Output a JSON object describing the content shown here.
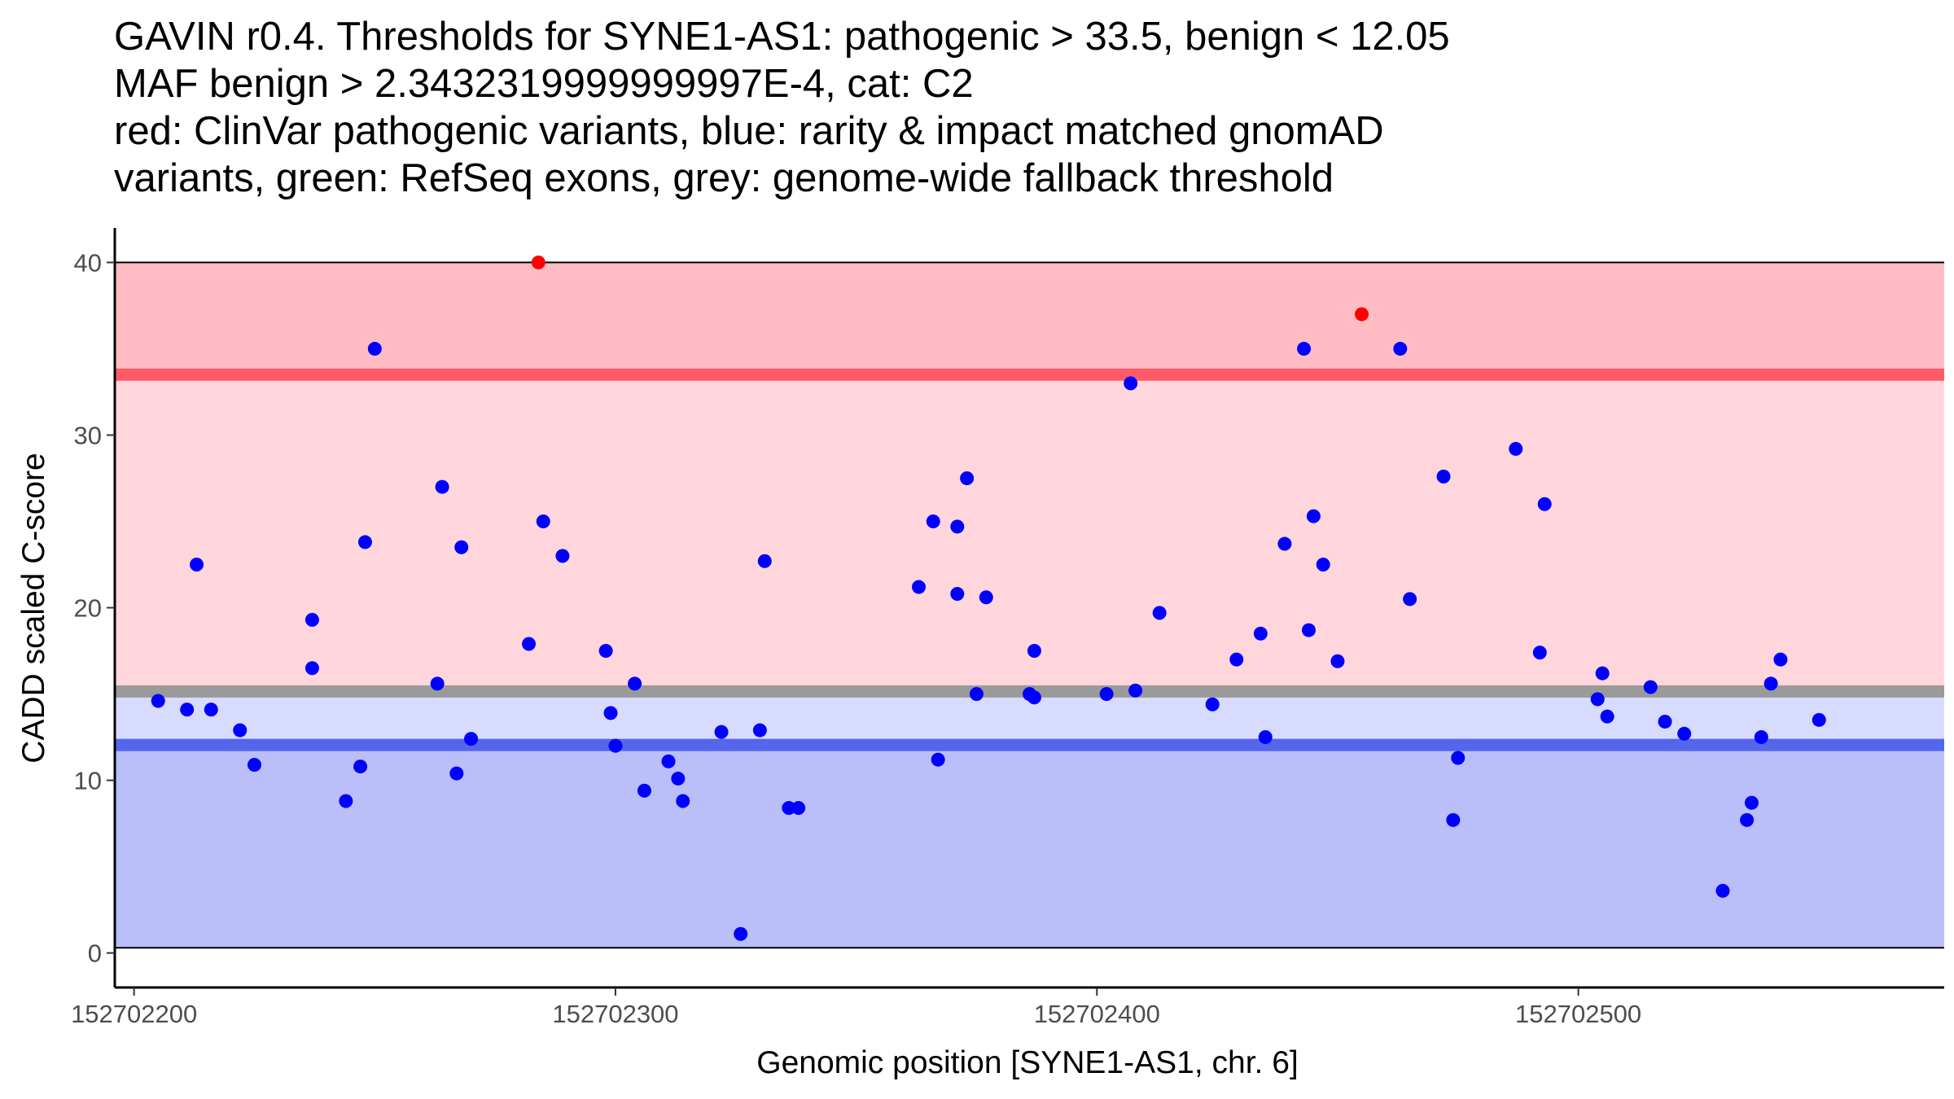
{
  "chart_data": {
    "type": "scatter",
    "title_lines": [
      "GAVIN r0.4. Thresholds for SYNE1-AS1: pathogenic > 33.5, benign < 12.05",
      "MAF benign > 2.3432319999999997E-4, cat: C2",
      "red: ClinVar pathogenic variants, blue: rarity & impact matched gnomAD",
      "variants, green: RefSeq exons, grey: genome-wide fallback threshold"
    ],
    "xlabel": "Genomic position [SYNE1-AS1, chr. 6]",
    "ylabel": "CADD scaled C-score",
    "xlim": [
      152702196,
      152702576
    ],
    "ylim": [
      -2,
      42
    ],
    "x_ticks": [
      152702200,
      152702300,
      152702400,
      152702500
    ],
    "y_ticks": [
      0,
      10,
      20,
      30,
      40
    ],
    "colors": {
      "pathogenic_band": "#ffbcc2",
      "middle_band": "#ffd6dc",
      "benign_upper_band": "#d7dbff",
      "benign_band": "#babffa",
      "pathogenic_line": "#ff5a68",
      "grey_line": "#9a9a9a",
      "benign_line": "#5366ec",
      "pathogenic_point": "#ff0000",
      "benign_point": "#0000ff"
    },
    "bands": {
      "pathogenic_region": [
        33.5,
        40
      ],
      "middle_region": [
        15.15,
        33.5
      ],
      "benign_upper_region": [
        12.05,
        15.15
      ],
      "benign_region": [
        0.3,
        12.05
      ]
    },
    "thresholds": {
      "pathogenic": 33.5,
      "genome_wide_fallback": 15.15,
      "benign": 12.05
    },
    "series": [
      {
        "name": "ClinVar pathogenic variants",
        "color": "#ff0000",
        "points": [
          [
            152702284,
            40.0
          ],
          [
            152702455,
            37.0
          ]
        ]
      },
      {
        "name": "rarity & impact matched gnomAD variants",
        "color": "#0000ff",
        "points": [
          [
            152702205,
            14.6
          ],
          [
            152702211,
            14.1
          ],
          [
            152702213,
            22.5
          ],
          [
            152702216,
            14.1
          ],
          [
            152702222,
            12.9
          ],
          [
            152702225,
            10.9
          ],
          [
            152702237,
            19.3
          ],
          [
            152702237,
            16.5
          ],
          [
            152702244,
            8.8
          ],
          [
            152702247,
            10.8
          ],
          [
            152702248,
            23.8
          ],
          [
            152702250,
            35.0
          ],
          [
            152702263,
            15.6
          ],
          [
            152702264,
            27.0
          ],
          [
            152702267,
            10.4
          ],
          [
            152702268,
            23.5
          ],
          [
            152702270,
            12.4
          ],
          [
            152702282,
            17.9
          ],
          [
            152702285,
            25.0
          ],
          [
            152702289,
            23.0
          ],
          [
            152702298,
            17.5
          ],
          [
            152702299,
            13.9
          ],
          [
            152702300,
            12.0
          ],
          [
            152702304,
            15.6
          ],
          [
            152702306,
            9.4
          ],
          [
            152702311,
            11.1
          ],
          [
            152702313,
            10.1
          ],
          [
            152702314,
            8.8
          ],
          [
            152702322,
            12.8
          ],
          [
            152702326,
            1.1
          ],
          [
            152702330,
            12.9
          ],
          [
            152702331,
            22.7
          ],
          [
            152702336,
            8.4
          ],
          [
            152702338,
            8.4
          ],
          [
            152702363,
            21.2
          ],
          [
            152702366,
            25.0
          ],
          [
            152702367,
            11.2
          ],
          [
            152702371,
            24.7
          ],
          [
            152702371,
            20.8
          ],
          [
            152702373,
            27.5
          ],
          [
            152702375,
            15.0
          ],
          [
            152702377,
            20.6
          ],
          [
            152702386,
            15.0
          ],
          [
            152702387,
            17.5
          ],
          [
            152702387,
            14.8
          ],
          [
            152702402,
            15.0
          ],
          [
            152702407,
            33.0
          ],
          [
            152702408,
            15.2
          ],
          [
            152702413,
            19.7
          ],
          [
            152702424,
            14.4
          ],
          [
            152702429,
            17.0
          ],
          [
            152702434,
            18.5
          ],
          [
            152702435,
            12.5
          ],
          [
            152702439,
            23.7
          ],
          [
            152702443,
            35.0
          ],
          [
            152702444,
            18.7
          ],
          [
            152702445,
            25.3
          ],
          [
            152702447,
            22.5
          ],
          [
            152702450,
            16.9
          ],
          [
            152702463,
            35.0
          ],
          [
            152702465,
            20.5
          ],
          [
            152702472,
            27.6
          ],
          [
            152702474,
            7.7
          ],
          [
            152702475,
            11.3
          ],
          [
            152702487,
            29.2
          ],
          [
            152702492,
            17.4
          ],
          [
            152702493,
            26.0
          ],
          [
            152702504,
            14.7
          ],
          [
            152702505,
            16.2
          ],
          [
            152702506,
            13.7
          ],
          [
            152702515,
            15.4
          ],
          [
            152702518,
            13.4
          ],
          [
            152702522,
            12.7
          ],
          [
            152702530,
            3.6
          ],
          [
            152702535,
            7.7
          ],
          [
            152702536,
            8.7
          ],
          [
            152702538,
            12.5
          ],
          [
            152702540,
            15.6
          ],
          [
            152702542,
            17.0
          ],
          [
            152702550,
            13.5
          ]
        ]
      }
    ]
  }
}
